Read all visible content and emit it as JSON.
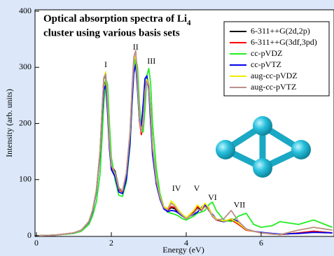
{
  "chart_data": {
    "type": "line",
    "title_parts": [
      "Optical absorption spectra of Li",
      "4",
      "cluster using various basis sets"
    ],
    "x_label": "Energy (eV)",
    "y_label": "Intensity (arb. units)",
    "xlim": [
      0,
      7.9
    ],
    "ylim": [
      0,
      400
    ],
    "xticks": [
      0,
      2,
      4,
      6
    ],
    "yticks": [
      0,
      100,
      200,
      300,
      400
    ],
    "x": [
      0,
      0.5,
      1.0,
      1.2,
      1.4,
      1.5,
      1.6,
      1.7,
      1.75,
      1.8,
      1.85,
      1.9,
      1.95,
      2.0,
      2.1,
      2.2,
      2.3,
      2.4,
      2.5,
      2.55,
      2.6,
      2.65,
      2.7,
      2.75,
      2.8,
      2.85,
      2.9,
      2.95,
      3.0,
      3.05,
      3.1,
      3.2,
      3.3,
      3.4,
      3.5,
      3.6,
      3.7,
      3.8,
      3.9,
      4.0,
      4.2,
      4.3,
      4.4,
      4.5,
      4.6,
      4.7,
      4.8,
      5.0,
      5.2,
      5.4,
      5.6,
      5.8,
      6.0,
      6.3,
      6.5,
      7.0,
      7.4,
      7.9
    ],
    "series": [
      {
        "name": "6-311++G(2d,2p)",
        "color": "#000000",
        "values": [
          0,
          1,
          5,
          10,
          25,
          45,
          80,
          150,
          220,
          280,
          285,
          230,
          160,
          125,
          115,
          85,
          80,
          110,
          180,
          250,
          310,
          320,
          270,
          210,
          185,
          200,
          260,
          280,
          270,
          220,
          160,
          100,
          70,
          50,
          45,
          50,
          48,
          40,
          35,
          30,
          42,
          50,
          45,
          55,
          48,
          35,
          28,
          25,
          30,
          20,
          10,
          8,
          5,
          3,
          2,
          5,
          8,
          5
        ]
      },
      {
        "name": "6-311++G(3df,3pd)",
        "color": "#ff0000",
        "values": [
          0,
          1,
          5,
          10,
          25,
          45,
          80,
          150,
          215,
          270,
          275,
          225,
          160,
          120,
          110,
          82,
          78,
          108,
          175,
          245,
          305,
          318,
          268,
          205,
          180,
          195,
          255,
          275,
          265,
          215,
          158,
          98,
          68,
          50,
          45,
          52,
          50,
          42,
          36,
          30,
          44,
          52,
          47,
          57,
          50,
          36,
          28,
          26,
          28,
          20,
          10,
          8,
          5,
          3,
          2,
          5,
          8,
          5
        ]
      },
      {
        "name": "cc-pVDZ",
        "color": "#22ee22",
        "values": [
          0,
          1,
          4,
          8,
          20,
          35,
          60,
          110,
          170,
          235,
          280,
          270,
          200,
          140,
          100,
          72,
          70,
          95,
          160,
          230,
          295,
          318,
          300,
          235,
          190,
          185,
          225,
          285,
          298,
          270,
          200,
          120,
          75,
          52,
          42,
          40,
          38,
          35,
          30,
          28,
          35,
          40,
          42,
          45,
          55,
          60,
          45,
          28,
          25,
          35,
          40,
          20,
          15,
          18,
          25,
          20,
          28,
          15
        ]
      },
      {
        "name": "cc-pVTZ",
        "color": "#0000ee",
        "values": [
          0,
          1,
          5,
          10,
          24,
          43,
          78,
          145,
          210,
          260,
          268,
          220,
          155,
          118,
          105,
          78,
          75,
          100,
          165,
          235,
          290,
          305,
          260,
          205,
          195,
          235,
          280,
          285,
          260,
          200,
          145,
          92,
          65,
          48,
          43,
          45,
          44,
          40,
          35,
          32,
          38,
          42,
          50,
          55,
          45,
          38,
          30,
          25,
          30,
          25,
          12,
          8,
          6,
          4,
          3,
          4,
          6,
          5
        ]
      },
      {
        "name": "aug-cc-pVDZ",
        "color": "#eeee00",
        "values": [
          0,
          1,
          5,
          10,
          25,
          46,
          82,
          152,
          220,
          280,
          292,
          240,
          170,
          125,
          112,
          84,
          80,
          112,
          182,
          255,
          312,
          322,
          272,
          210,
          185,
          200,
          258,
          278,
          270,
          218,
          160,
          100,
          70,
          52,
          48,
          62,
          55,
          45,
          38,
          32,
          45,
          55,
          48,
          58,
          50,
          36,
          30,
          26,
          30,
          22,
          11,
          8,
          5,
          3,
          2,
          10,
          15,
          10
        ]
      },
      {
        "name": "aug-cc-pVTZ",
        "color": "#bc8f8f",
        "values": [
          0,
          1,
          5,
          10,
          25,
          45,
          80,
          150,
          220,
          282,
          288,
          235,
          165,
          125,
          112,
          84,
          80,
          112,
          185,
          258,
          318,
          330,
          275,
          212,
          185,
          198,
          255,
          275,
          268,
          215,
          158,
          98,
          68,
          50,
          46,
          58,
          52,
          42,
          36,
          30,
          40,
          48,
          44,
          52,
          46,
          34,
          28,
          30,
          45,
          25,
          12,
          8,
          5,
          3,
          2,
          10,
          15,
          10
        ]
      }
    ],
    "annotations": [
      {
        "text": "I",
        "x": 1.85,
        "y": 304
      },
      {
        "text": "II",
        "x": 2.65,
        "y": 335
      },
      {
        "text": "III",
        "x": 3.07,
        "y": 310
      },
      {
        "text": "IV",
        "x": 3.74,
        "y": 83
      },
      {
        "text": "V",
        "x": 4.28,
        "y": 83
      },
      {
        "text": "VI",
        "x": 4.7,
        "y": 67
      },
      {
        "text": "VII",
        "x": 5.42,
        "y": 54
      }
    ]
  }
}
